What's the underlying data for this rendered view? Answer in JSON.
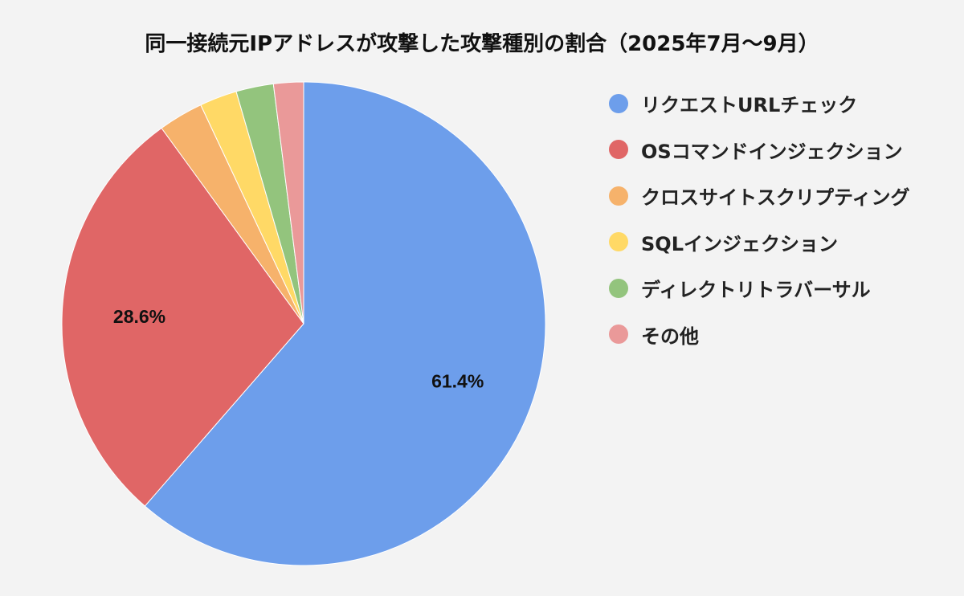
{
  "chart_data": {
    "type": "pie",
    "title": "同一接続元IPアドレスが攻撃した攻撃種別の割合（2025年7月〜9月）",
    "slices": [
      {
        "name": "リクエストURLチェック",
        "value": 61.4,
        "label": "61.4%",
        "color": "#6d9eeb"
      },
      {
        "name": "OSコマンドインジェクション",
        "value": 28.6,
        "label": "28.6%",
        "color": "#e06666"
      },
      {
        "name": "クロスサイトスクリプティング",
        "value": 3.0,
        "label": "",
        "color": "#f6b26b"
      },
      {
        "name": "SQLインジェクション",
        "value": 2.5,
        "label": "",
        "color": "#ffd966"
      },
      {
        "name": "ディレクトリトラバーサル",
        "value": 2.5,
        "label": "",
        "color": "#93c47d"
      },
      {
        "name": "その他",
        "value": 2.0,
        "label": "",
        "color": "#ea9999"
      }
    ],
    "legend_position": "right"
  }
}
